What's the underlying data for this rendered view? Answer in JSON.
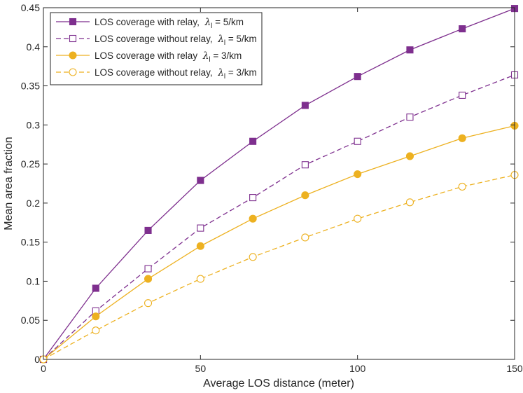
{
  "chart_data": {
    "type": "line",
    "title": "",
    "xlabel": "Average LOS distance (meter)",
    "ylabel": "Mean area fraction",
    "xlim": [
      0,
      150
    ],
    "ylim": [
      0,
      0.45
    ],
    "xticks": [
      0,
      50,
      100,
      150
    ],
    "yticks": [
      0,
      0.05,
      0.1,
      0.15,
      0.2,
      0.25,
      0.3,
      0.35,
      0.4,
      0.45
    ],
    "xtick_labels": [
      "0",
      "50",
      "100",
      "150"
    ],
    "ytick_labels": [
      "0",
      "0.05",
      "0.1",
      "0.15",
      "0.2",
      "0.25",
      "0.3",
      "0.35",
      "0.4",
      "0.45"
    ],
    "grid": false,
    "legend_position": "top-left",
    "x": [
      0,
      16.67,
      33.33,
      50,
      66.67,
      83.33,
      100,
      116.67,
      133.33,
      150
    ],
    "series": [
      {
        "name": "LOS coverage with relay, λl = 5/km",
        "legend_prefix": "LOS coverage with relay, ",
        "legend_value": " = 5/km",
        "color": "#7E2F8E",
        "marker": "square",
        "filled": true,
        "dashed": false,
        "values": [
          0,
          0.091,
          0.165,
          0.229,
          0.279,
          0.325,
          0.362,
          0.396,
          0.423,
          0.449
        ]
      },
      {
        "name": "LOS coverage without relay, λl = 5/km",
        "legend_prefix": "LOS coverage without relay, ",
        "legend_value": " = 5/km",
        "color": "#7E2F8E",
        "marker": "square",
        "filled": false,
        "dashed": true,
        "values": [
          0,
          0.062,
          0.116,
          0.168,
          0.207,
          0.249,
          0.279,
          0.31,
          0.338,
          0.364
        ]
      },
      {
        "name": "LOS coverage with relay λl = 3/km",
        "legend_prefix": "LOS coverage with relay ",
        "legend_value": " = 3/km",
        "color": "#EDB120",
        "marker": "circle",
        "filled": true,
        "dashed": false,
        "values": [
          0,
          0.055,
          0.103,
          0.145,
          0.18,
          0.21,
          0.237,
          0.26,
          0.283,
          0.299
        ]
      },
      {
        "name": "LOS coverage without relay, λl = 3/km",
        "legend_prefix": "LOS coverage without relay, ",
        "legend_value": " = 3/km",
        "color": "#EDB120",
        "marker": "circle",
        "filled": false,
        "dashed": true,
        "values": [
          0,
          0.037,
          0.072,
          0.103,
          0.131,
          0.156,
          0.18,
          0.201,
          0.221,
          0.236
        ]
      }
    ],
    "lambda_symbol": "λ",
    "lambda_subscript": "l"
  }
}
